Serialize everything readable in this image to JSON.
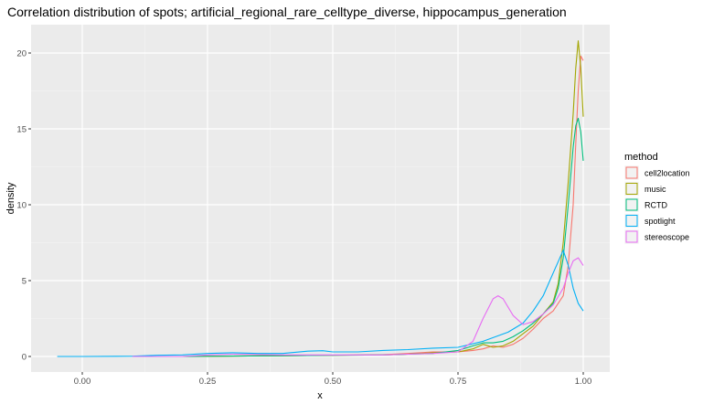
{
  "chart_data": {
    "type": "line",
    "title": "Correlation distribution of spots; artificial_regional_rare_celltype_diverse, hippocampus_generation",
    "xlabel": "x",
    "ylabel": "density",
    "xlim": [
      -0.05,
      1.0
    ],
    "ylim": [
      -0.5,
      22
    ],
    "x_ticks": [
      0.0,
      0.25,
      0.5,
      0.75,
      1.0
    ],
    "x_tick_labels": [
      "0.00",
      "0.25",
      "0.50",
      "0.75",
      "1.00"
    ],
    "y_ticks": [
      0,
      5,
      10,
      15,
      20
    ],
    "y_tick_labels": [
      "0",
      "5",
      "10",
      "15",
      "20"
    ],
    "grid": true,
    "legend": {
      "title": "method",
      "position": "right"
    },
    "series": [
      {
        "name": "cell2location",
        "color": "#F8766D",
        "x": [
          0.2,
          0.4,
          0.5,
          0.6,
          0.65,
          0.7,
          0.75,
          0.78,
          0.8,
          0.82,
          0.84,
          0.86,
          0.88,
          0.9,
          0.92,
          0.94,
          0.96,
          0.97,
          0.98,
          0.985,
          0.99,
          0.995,
          1.0
        ],
        "y": [
          0.0,
          0.05,
          0.08,
          0.12,
          0.2,
          0.3,
          0.3,
          0.4,
          0.5,
          0.7,
          0.6,
          0.8,
          1.2,
          1.8,
          2.5,
          3.0,
          4.0,
          6.0,
          10.0,
          14.0,
          17.5,
          19.8,
          19.5
        ]
      },
      {
        "name": "music",
        "color": "#A3A500",
        "x": [
          0.2,
          0.4,
          0.5,
          0.6,
          0.65,
          0.7,
          0.75,
          0.78,
          0.8,
          0.82,
          0.84,
          0.86,
          0.88,
          0.9,
          0.92,
          0.94,
          0.95,
          0.96,
          0.97,
          0.98,
          0.985,
          0.99,
          0.995,
          1.0
        ],
        "y": [
          0.0,
          0.05,
          0.08,
          0.1,
          0.15,
          0.25,
          0.3,
          0.5,
          0.8,
          0.6,
          0.7,
          1.0,
          1.5,
          2.0,
          2.8,
          3.6,
          4.8,
          7.5,
          11.5,
          16.0,
          19.0,
          20.8,
          19.0,
          15.8
        ]
      },
      {
        "name": "RCTD",
        "color": "#00BF7D",
        "x": [
          0.2,
          0.4,
          0.5,
          0.6,
          0.65,
          0.7,
          0.75,
          0.78,
          0.8,
          0.82,
          0.84,
          0.86,
          0.88,
          0.9,
          0.92,
          0.94,
          0.95,
          0.96,
          0.97,
          0.98,
          0.985,
          0.99,
          0.995,
          1.0
        ],
        "y": [
          0.0,
          0.05,
          0.08,
          0.1,
          0.15,
          0.2,
          0.4,
          0.7,
          0.9,
          0.9,
          1.0,
          1.3,
          1.7,
          2.2,
          2.8,
          3.5,
          4.5,
          6.5,
          10.0,
          13.8,
          15.2,
          15.7,
          14.8,
          12.9
        ]
      },
      {
        "name": "spotlight",
        "color": "#00B0F6",
        "x": [
          -0.05,
          0.0,
          0.1,
          0.15,
          0.2,
          0.25,
          0.3,
          0.35,
          0.4,
          0.45,
          0.48,
          0.5,
          0.55,
          0.6,
          0.65,
          0.7,
          0.75,
          0.8,
          0.85,
          0.88,
          0.9,
          0.92,
          0.94,
          0.96,
          0.97,
          0.98,
          0.99,
          1.0
        ],
        "y": [
          0.0,
          0.0,
          0.02,
          0.08,
          0.1,
          0.2,
          0.25,
          0.2,
          0.2,
          0.35,
          0.38,
          0.3,
          0.3,
          0.4,
          0.45,
          0.55,
          0.6,
          1.0,
          1.6,
          2.2,
          3.0,
          4.0,
          5.5,
          7.0,
          6.0,
          4.5,
          3.5,
          3.0
        ]
      },
      {
        "name": "stereoscope",
        "color": "#E76BF3",
        "x": [
          0.1,
          0.2,
          0.25,
          0.3,
          0.4,
          0.5,
          0.6,
          0.65,
          0.7,
          0.75,
          0.78,
          0.8,
          0.82,
          0.83,
          0.84,
          0.86,
          0.88,
          0.9,
          0.92,
          0.94,
          0.96,
          0.97,
          0.98,
          0.99,
          1.0
        ],
        "y": [
          0.0,
          0.0,
          0.1,
          0.15,
          0.1,
          0.1,
          0.1,
          0.15,
          0.2,
          0.3,
          1.0,
          2.5,
          3.8,
          4.0,
          3.8,
          2.7,
          2.1,
          2.3,
          2.8,
          3.4,
          4.5,
          5.5,
          6.3,
          6.5,
          6.0
        ]
      }
    ]
  }
}
